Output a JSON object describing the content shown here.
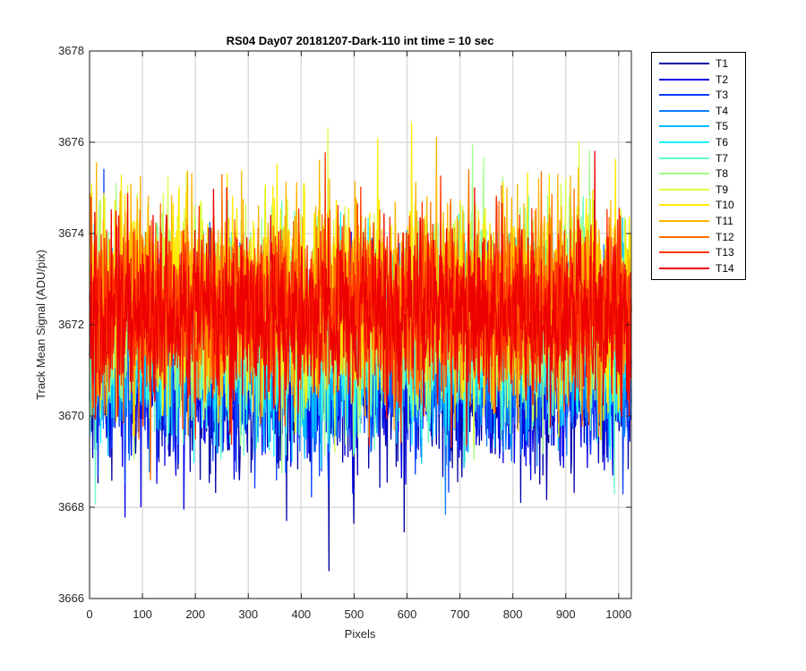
{
  "chart_data": {
    "type": "line",
    "title": "RS04 Day07 20181207-Dark-110 int time = 10 sec",
    "xlabel": "Pixels",
    "ylabel": "Track Mean Signal (ADU/pix)",
    "xlim": [
      0,
      1024
    ],
    "ylim": [
      3666,
      3678
    ],
    "xticks": [
      0,
      100,
      200,
      300,
      400,
      500,
      600,
      700,
      800,
      900,
      1000
    ],
    "yticks": [
      3666,
      3668,
      3670,
      3672,
      3674,
      3676,
      3678
    ],
    "grid": true,
    "legend_position": "outside-top-right",
    "n_points": 1024,
    "series": [
      {
        "name": "T1",
        "color": "#0000a8",
        "mean": 3670.8,
        "noise": 1.05
      },
      {
        "name": "T2",
        "color": "#0000e8",
        "mean": 3671.0,
        "noise": 1.0
      },
      {
        "name": "T3",
        "color": "#0a3cff",
        "mean": 3671.2,
        "noise": 1.0
      },
      {
        "name": "T4",
        "color": "#0a7dff",
        "mean": 3671.4,
        "noise": 1.0
      },
      {
        "name": "T5",
        "color": "#00bdff",
        "mean": 3671.6,
        "noise": 1.0
      },
      {
        "name": "T6",
        "color": "#1ef5ff",
        "mean": 3671.8,
        "noise": 1.0
      },
      {
        "name": "T7",
        "color": "#63ffc0",
        "mean": 3672.0,
        "noise": 1.0
      },
      {
        "name": "T8",
        "color": "#9eff86",
        "mean": 3672.2,
        "noise": 1.05
      },
      {
        "name": "T9",
        "color": "#d8ff48",
        "mean": 3672.4,
        "noise": 1.05
      },
      {
        "name": "T10",
        "color": "#ffeb00",
        "mean": 3672.6,
        "noise": 1.05
      },
      {
        "name": "T11",
        "color": "#ffb400",
        "mean": 3672.6,
        "noise": 1.05
      },
      {
        "name": "T12",
        "color": "#ff7000",
        "mean": 3672.4,
        "noise": 1.0
      },
      {
        "name": "T13",
        "color": "#ff3200",
        "mean": 3672.3,
        "noise": 0.95
      },
      {
        "name": "T14",
        "color": "#ee0000",
        "mean": 3672.2,
        "noise": 0.9
      }
    ]
  }
}
